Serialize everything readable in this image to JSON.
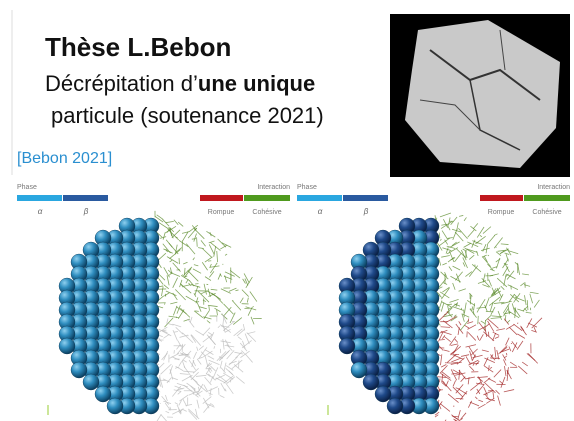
{
  "header": {
    "title": "Thèse L.Bebon",
    "subtitle_line1": "Décrépitation d’",
    "subtitle_line1_bold": "une unique",
    "subtitle_line2": "particule (soutenance 2021)",
    "reference": "[Bebon 2021]"
  },
  "panels": [
    {
      "phase_label": "Phase",
      "phase_items": [
        "α",
        "β"
      ],
      "interaction_label": "Interaction",
      "interaction_items": [
        "Rompue",
        "Cohésive"
      ]
    },
    {
      "phase_label": "Phase",
      "phase_items": [
        "α",
        "β"
      ],
      "interaction_label": "Interaction",
      "interaction_items": [
        "Rompue",
        "Cohésive"
      ]
    }
  ]
}
